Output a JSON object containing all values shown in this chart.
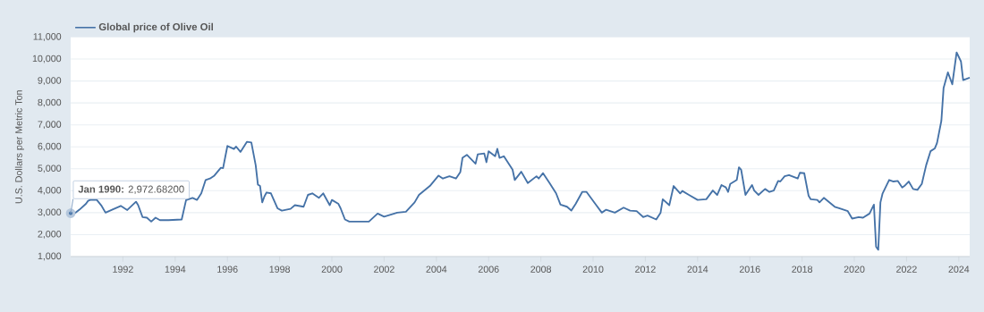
{
  "chart_data": {
    "type": "line",
    "xlabel": null,
    "ylabel": "U.S. Dollars per Metric Ton",
    "legend": "top left",
    "grid": "y",
    "marker": "none",
    "line_style": "solid",
    "xlim": [
      "1990-01",
      "2024-06"
    ],
    "xticks": [
      "1992",
      "1994",
      "1996",
      "1998",
      "2000",
      "2002",
      "2004",
      "2006",
      "2008",
      "2010",
      "2012",
      "2014",
      "2016",
      "2018",
      "2020",
      "2022",
      "2024"
    ],
    "ylim": [
      1000,
      11000
    ],
    "yticks": [
      {
        "value": 1000,
        "label": "1,000"
      },
      {
        "value": 2000,
        "label": "2,000"
      },
      {
        "value": 3000,
        "label": "3,000"
      },
      {
        "value": 4000,
        "label": "4,000"
      },
      {
        "value": 5000,
        "label": "5,000"
      },
      {
        "value": 6000,
        "label": "6,000"
      },
      {
        "value": 7000,
        "label": "7,000"
      },
      {
        "value": 8000,
        "label": "8,000"
      },
      {
        "value": 9000,
        "label": "9,000"
      },
      {
        "value": 10000,
        "label": "10,000"
      },
      {
        "value": 11000,
        "label": "11,000"
      }
    ],
    "annotations": [
      {
        "text": "**Jan 1990:** 2,972.68200",
        "x": "1990-01",
        "y": 2972.682
      }
    ],
    "series": [
      {
        "name": "Global price of Olive Oil",
        "color": "#4572a7",
        "x": [
          "1990-01",
          "1990-02",
          "1990-05",
          "1990-08",
          "1990-09",
          "1990-10",
          "1991-01",
          "1991-03",
          "1991-05",
          "1991-08",
          "1991-12",
          "1992-03",
          "1992-07",
          "1992-08",
          "1992-10",
          "1992-12",
          "1993-02",
          "1993-04",
          "1993-06",
          "1993-10",
          "1994-04",
          "1994-06",
          "1994-09",
          "1994-11",
          "1995-01",
          "1995-03",
          "1995-05",
          "1995-07",
          "1995-10",
          "1995-11",
          "1996-01",
          "1996-04",
          "1996-05",
          "1996-07",
          "1996-10",
          "1996-12",
          "1997-02",
          "1997-03",
          "1997-04",
          "1997-05",
          "1997-06",
          "1997-07",
          "1997-09",
          "1997-12",
          "1998-02",
          "1998-06",
          "1998-08",
          "1998-12",
          "1999-02",
          "1999-04",
          "1999-07",
          "1999-09",
          "1999-12",
          "2000-01",
          "2000-04",
          "2000-05",
          "2000-07",
          "2000-09",
          "2001-02",
          "2001-06",
          "2001-10",
          "2002-01",
          "2002-07",
          "2002-11",
          "2003-03",
          "2003-05",
          "2003-10",
          "2004-02",
          "2004-04",
          "2004-07",
          "2004-10",
          "2004-12",
          "2005-01",
          "2005-03",
          "2005-07",
          "2005-08",
          "2005-11",
          "2005-12",
          "2006-01",
          "2006-04",
          "2006-05",
          "2006-06",
          "2006-08",
          "2006-12",
          "2007-01",
          "2007-04",
          "2007-07",
          "2007-11",
          "2007-12",
          "2008-02",
          "2008-05",
          "2008-08",
          "2008-10",
          "2009-01",
          "2009-03",
          "2009-05",
          "2009-08",
          "2009-10",
          "2010-02",
          "2010-05",
          "2010-07",
          "2010-11",
          "2011-03",
          "2011-06",
          "2011-09",
          "2011-12",
          "2012-02",
          "2012-06",
          "2012-08",
          "2012-09",
          "2012-12",
          "2013-02",
          "2013-05",
          "2013-06",
          "2013-09",
          "2014-01",
          "2014-05",
          "2014-08",
          "2014-10",
          "2014-12",
          "2015-02",
          "2015-03",
          "2015-04",
          "2015-07",
          "2015-08",
          "2015-09",
          "2015-11",
          "2016-02",
          "2016-03",
          "2016-05",
          "2016-08",
          "2016-10",
          "2016-12",
          "2017-02",
          "2017-03",
          "2017-05",
          "2017-07",
          "2017-11",
          "2017-12",
          "2018-02",
          "2018-04",
          "2018-05",
          "2018-08",
          "2018-09",
          "2018-11",
          "2019-04",
          "2019-06",
          "2019-10",
          "2019-12",
          "2020-03",
          "2020-05",
          "2020-08",
          "2020-10",
          "2020-11",
          "2020-12",
          "2021-01",
          "2021-02",
          "2021-05",
          "2021-07",
          "2021-09",
          "2021-11",
          "2021-12",
          "2022-02",
          "2022-04",
          "2022-06",
          "2022-08",
          "2022-10",
          "2022-12",
          "2023-02",
          "2023-03",
          "2023-05",
          "2023-06",
          "2023-08",
          "2023-10",
          "2023-12",
          "2024-02",
          "2024-03",
          "2024-06"
        ],
        "values": [
          2972.682,
          2900,
          3135,
          3405,
          3540,
          3580,
          3580,
          3340,
          3000,
          3135,
          3310,
          3120,
          3500,
          3340,
          2800,
          2770,
          2595,
          2770,
          2660,
          2660,
          2690,
          3570,
          3675,
          3580,
          3880,
          4490,
          4555,
          4690,
          5050,
          5030,
          6040,
          5900,
          6010,
          5770,
          6230,
          6200,
          5160,
          4280,
          4215,
          3470,
          3740,
          3920,
          3880,
          3200,
          3095,
          3175,
          3340,
          3270,
          3810,
          3880,
          3675,
          3880,
          3340,
          3580,
          3400,
          3200,
          2690,
          2595,
          2595,
          2595,
          2960,
          2820,
          3000,
          3040,
          3470,
          3810,
          4215,
          4690,
          4555,
          4660,
          4555,
          4850,
          5500,
          5635,
          5230,
          5660,
          5700,
          5300,
          5800,
          5570,
          5910,
          5500,
          5570,
          4960,
          4490,
          4865,
          4350,
          4660,
          4555,
          4800,
          4350,
          3880,
          3365,
          3270,
          3095,
          3405,
          3945,
          3945,
          3405,
          3000,
          3135,
          3000,
          3230,
          3095,
          3070,
          2800,
          2865,
          2690,
          3000,
          3610,
          3340,
          4215,
          3880,
          3990,
          3810,
          3580,
          3610,
          4010,
          3810,
          4260,
          4150,
          3945,
          4310,
          4490,
          5070,
          4960,
          3810,
          4260,
          4010,
          3810,
          4080,
          3945,
          4010,
          4445,
          4420,
          4660,
          4715,
          4555,
          4820,
          4800,
          3770,
          3610,
          3580,
          3470,
          3675,
          3270,
          3200,
          3070,
          2730,
          2800,
          2770,
          2960,
          3365,
          1445,
          1310,
          3470,
          3880,
          4490,
          4420,
          4445,
          4150,
          4215,
          4420,
          4080,
          4040,
          4310,
          5160,
          5800,
          5930,
          6180,
          7190,
          8675,
          9390,
          8850,
          10300,
          9890,
          9040,
          9150
        ]
      }
    ]
  }
}
